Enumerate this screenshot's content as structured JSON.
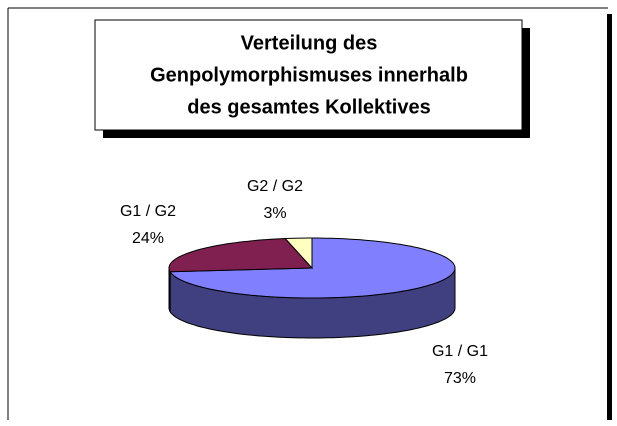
{
  "chart_data": {
    "type": "pie3d",
    "title": [
      "Verteilung des",
      "Genpolymorphismuses innerhalb",
      "des gesamtes Kollektives"
    ],
    "categories": [
      "G1 / G1",
      "G1 / G2",
      "G2 / G2"
    ],
    "values": [
      73,
      24,
      3
    ],
    "value_labels": [
      "73%",
      "24%",
      "3%"
    ],
    "colors": [
      "#8080ff",
      "#802050",
      "#ffffc0"
    ],
    "side_colors": [
      "#404080",
      "#401028",
      "#808060"
    ]
  }
}
